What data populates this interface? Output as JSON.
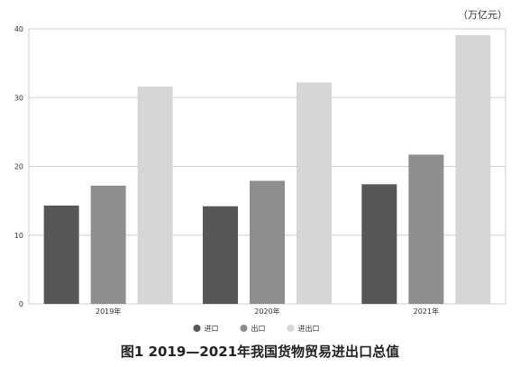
{
  "caption": "图1  2019—2021年我国货物贸易进出口总值",
  "chart_data": {
    "type": "bar",
    "title": "",
    "unit_label": "（万亿元）",
    "xlabel": "",
    "ylabel": "",
    "categories": [
      "2019年",
      "2020年",
      "2021年"
    ],
    "series": [
      {
        "name": "进口",
        "color": "#575757",
        "values": [
          14.3,
          14.2,
          17.4
        ]
      },
      {
        "name": "出口",
        "color": "#8e8e8e",
        "values": [
          17.2,
          17.9,
          21.7
        ]
      },
      {
        "name": "进出口",
        "color": "#d6d6d6",
        "values": [
          31.6,
          32.2,
          39.1
        ]
      }
    ],
    "ylim": [
      0,
      40
    ],
    "yticks": [
      0,
      10,
      20,
      30,
      40
    ],
    "grid": true,
    "legend_position": "bottom-center"
  }
}
